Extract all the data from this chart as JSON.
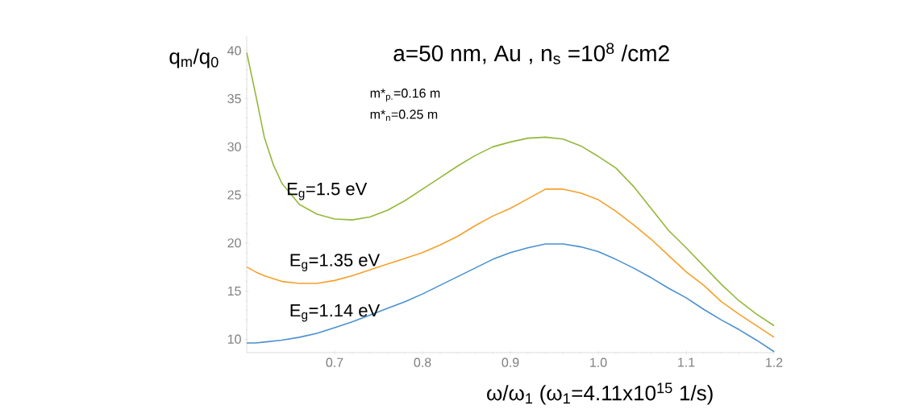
{
  "chart_data": {
    "type": "line",
    "title": "a=50 nm,  Au , n$_{s}$ =10$^{8}$ /cm2",
    "xlabel": "ω/ω$_{1}$   (ω$_{1}$=4.11x10$^{15}$ 1/s)",
    "ylabel": "q$_{m}$/q$_{0}$",
    "annotations": [
      "m*$_{p.}$=0.16 m",
      "m*$_{n}$=0.25 m"
    ],
    "x": [
      0.6,
      0.61,
      0.62,
      0.63,
      0.64,
      0.66,
      0.68,
      0.7,
      0.72,
      0.74,
      0.76,
      0.78,
      0.8,
      0.82,
      0.84,
      0.86,
      0.88,
      0.9,
      0.92,
      0.94,
      0.96,
      0.98,
      1.0,
      1.02,
      1.04,
      1.06,
      1.08,
      1.1,
      1.12,
      1.14,
      1.16,
      1.18,
      1.2
    ],
    "series": [
      {
        "name": "E$_{g}$=1.5 eV",
        "color": "#93b83a",
        "values": [
          39.8,
          35.5,
          31.0,
          28.2,
          26.2,
          24.0,
          23.0,
          22.5,
          22.4,
          22.7,
          23.4,
          24.4,
          25.6,
          26.8,
          28.0,
          29.1,
          30.0,
          30.5,
          30.9,
          31.0,
          30.8,
          30.1,
          29.0,
          27.8,
          25.9,
          23.6,
          21.3,
          19.5,
          17.6,
          15.7,
          14.0,
          12.6,
          11.4
        ]
      },
      {
        "name": "E$_{g}$=1.35 eV",
        "color": "#f5a02a",
        "values": [
          17.5,
          17.0,
          16.6,
          16.3,
          16.0,
          15.8,
          15.8,
          16.1,
          16.6,
          17.2,
          17.8,
          18.4,
          19.0,
          19.8,
          20.7,
          21.8,
          22.8,
          23.6,
          24.6,
          25.6,
          25.6,
          25.2,
          24.5,
          23.3,
          21.9,
          20.4,
          18.7,
          17.0,
          15.6,
          13.9,
          12.6,
          11.4,
          10.2
        ]
      },
      {
        "name": "E$_{g}$=1.14 eV",
        "color": "#4a90d0",
        "values": [
          9.6,
          9.6,
          9.7,
          9.8,
          9.9,
          10.2,
          10.6,
          11.2,
          11.8,
          12.5,
          13.2,
          13.9,
          14.7,
          15.6,
          16.5,
          17.4,
          18.3,
          19.0,
          19.5,
          19.9,
          19.9,
          19.6,
          19.1,
          18.3,
          17.4,
          16.4,
          15.3,
          14.3,
          13.1,
          12.0,
          11.0,
          9.9,
          8.7
        ]
      }
    ],
    "xlim": [
      0.6,
      1.2
    ],
    "ylim": [
      8.6,
      41.5
    ],
    "xticks": [
      0.7,
      0.8,
      0.9,
      {
        "value": 1.0,
        "label": "1.0"
      },
      1.1,
      1.2
    ],
    "yticks": [
      10,
      15,
      20,
      25,
      30,
      35,
      40
    ]
  }
}
